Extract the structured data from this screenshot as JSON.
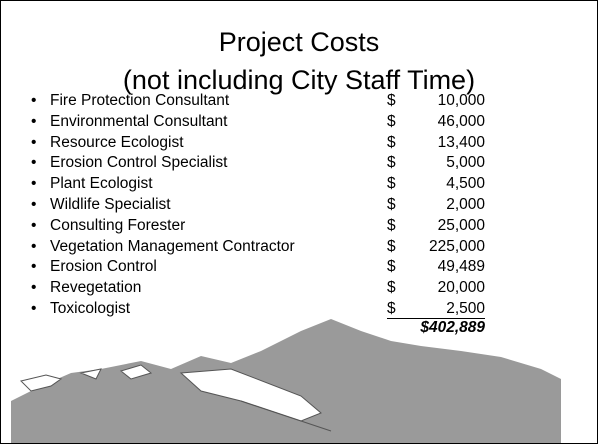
{
  "slide": {
    "title": [
      "Project Costs",
      "(not including City Staff Time)"
    ],
    "bullet": "•",
    "items": [
      {
        "label": "Fire Protection Consultant",
        "currency": "$",
        "amount": "10,000"
      },
      {
        "label": "Environmental Consultant",
        "currency": "$",
        "amount": "46,000"
      },
      {
        "label": "Resource Ecologist",
        "currency": "$",
        "amount": "13,400"
      },
      {
        "label": "Erosion Control Specialist",
        "currency": "$",
        "amount": "5,000"
      },
      {
        "label": "Plant Ecologist",
        "currency": "$",
        "amount": "4,500"
      },
      {
        "label": "Wildlife Specialist",
        "currency": "$",
        "amount": "2,000"
      },
      {
        "label": "Consulting Forester",
        "currency": "$",
        "amount": "25,000"
      },
      {
        "label": "Vegetation Management Contractor",
        "currency": "$",
        "amount": "225,000"
      },
      {
        "label": "Erosion Control",
        "currency": "$",
        "amount": "49,489"
      },
      {
        "label": "Revegetation",
        "currency": "$",
        "amount": "20,000"
      },
      {
        "label": "Toxicologist",
        "currency": "$",
        "amount": "2,500"
      }
    ],
    "total": "$402,889"
  }
}
